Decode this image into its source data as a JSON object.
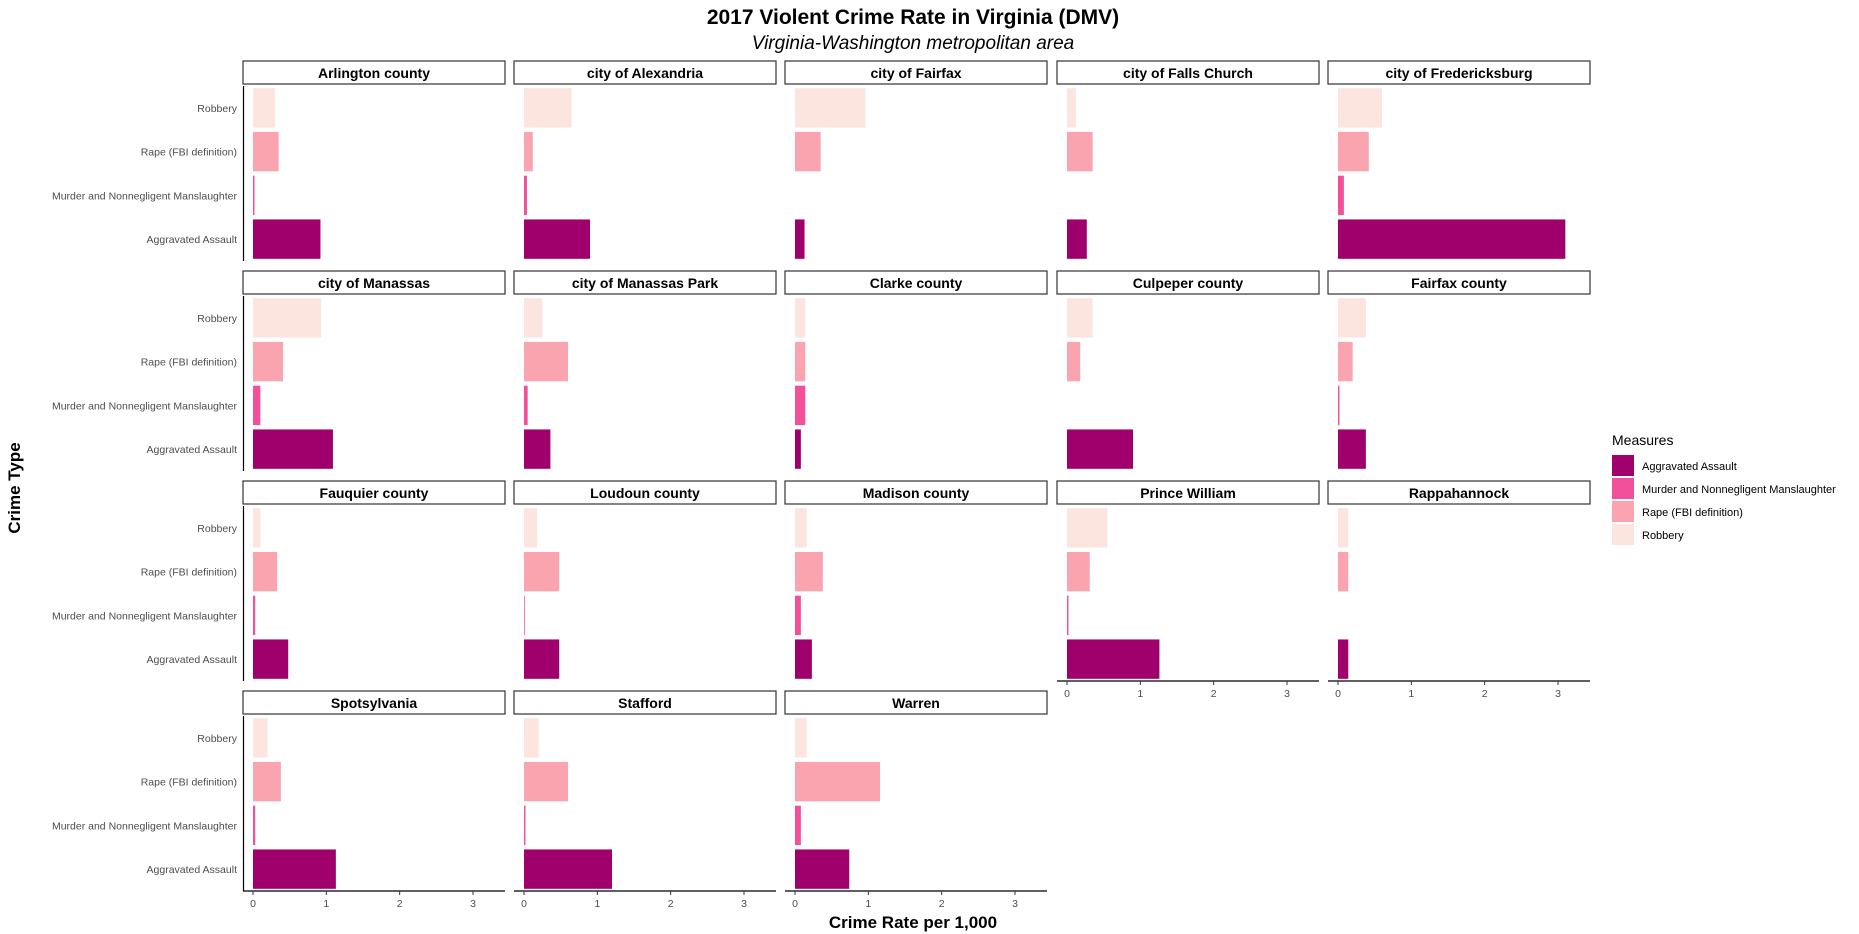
{
  "chart_data": {
    "type": "bar",
    "orientation": "horizontal",
    "title": "2017 Violent Crime Rate in Virginia (DMV)",
    "subtitle": "Virginia-Washington metropolitan area",
    "xlabel": "Crime Rate per 1,000",
    "ylabel": "Crime Type",
    "xlim": [
      0,
      3.3
    ],
    "xticks": [
      "0",
      "1",
      "2",
      "3"
    ],
    "categories": [
      "Robbery",
      "Rape (FBI definition)",
      "Murder and Nonnegligent Manslaughter",
      "Aggravated Assault"
    ],
    "legend": {
      "title": "Measures",
      "position": "right",
      "items": [
        {
          "label": "Aggravated Assault",
          "color": "#a0006c"
        },
        {
          "label": "Murder and Nonnegligent Manslaughter",
          "color": "#f2509a"
        },
        {
          "label": "Rape (FBI definition)",
          "color": "#f9a4ae"
        },
        {
          "label": "Robbery",
          "color": "#fde5df"
        }
      ]
    },
    "grid": false,
    "facets": [
      {
        "name": "Arlington county",
        "values": {
          "Robbery": 0.3,
          "Rape (FBI definition)": 0.35,
          "Murder and Nonnegligent Manslaughter": 0.02,
          "Aggravated Assault": 0.92
        }
      },
      {
        "name": "city of Alexandria",
        "values": {
          "Robbery": 0.65,
          "Rape (FBI definition)": 0.12,
          "Murder and Nonnegligent Manslaughter": 0.04,
          "Aggravated Assault": 0.9
        }
      },
      {
        "name": "city of Fairfax",
        "values": {
          "Robbery": 0.96,
          "Rape (FBI definition)": 0.35,
          "Murder and Nonnegligent Manslaughter": 0.0,
          "Aggravated Assault": 0.13
        }
      },
      {
        "name": "city of Falls Church",
        "values": {
          "Robbery": 0.12,
          "Rape (FBI definition)": 0.35,
          "Murder and Nonnegligent Manslaughter": 0.0,
          "Aggravated Assault": 0.27
        }
      },
      {
        "name": "city of Fredericksburg",
        "values": {
          "Robbery": 0.6,
          "Rape (FBI definition)": 0.42,
          "Murder and Nonnegligent Manslaughter": 0.08,
          "Aggravated Assault": 3.1
        }
      },
      {
        "name": "city of Manassas",
        "values": {
          "Robbery": 0.93,
          "Rape (FBI definition)": 0.41,
          "Murder and Nonnegligent Manslaughter": 0.1,
          "Aggravated Assault": 1.09
        }
      },
      {
        "name": "city of Manassas Park",
        "values": {
          "Robbery": 0.25,
          "Rape (FBI definition)": 0.6,
          "Murder and Nonnegligent Manslaughter": 0.05,
          "Aggravated Assault": 0.36
        }
      },
      {
        "name": "Clarke county",
        "values": {
          "Robbery": 0.14,
          "Rape (FBI definition)": 0.14,
          "Murder and Nonnegligent Manslaughter": 0.14,
          "Aggravated Assault": 0.08
        }
      },
      {
        "name": "Culpeper county",
        "values": {
          "Robbery": 0.35,
          "Rape (FBI definition)": 0.18,
          "Murder and Nonnegligent Manslaughter": 0.0,
          "Aggravated Assault": 0.9
        }
      },
      {
        "name": "Fairfax county",
        "values": {
          "Robbery": 0.38,
          "Rape (FBI definition)": 0.2,
          "Murder and Nonnegligent Manslaughter": 0.02,
          "Aggravated Assault": 0.38
        }
      },
      {
        "name": "Fauquier county",
        "values": {
          "Robbery": 0.1,
          "Rape (FBI definition)": 0.33,
          "Murder and Nonnegligent Manslaughter": 0.03,
          "Aggravated Assault": 0.48
        }
      },
      {
        "name": "Loudoun county",
        "values": {
          "Robbery": 0.18,
          "Rape (FBI definition)": 0.48,
          "Murder and Nonnegligent Manslaughter": 0.01,
          "Aggravated Assault": 0.48
        }
      },
      {
        "name": "Madison county",
        "values": {
          "Robbery": 0.16,
          "Rape (FBI definition)": 0.38,
          "Murder and Nonnegligent Manslaughter": 0.08,
          "Aggravated Assault": 0.23
        }
      },
      {
        "name": "Prince William",
        "values": {
          "Robbery": 0.55,
          "Rape (FBI definition)": 0.31,
          "Murder and Nonnegligent Manslaughter": 0.02,
          "Aggravated Assault": 1.26
        }
      },
      {
        "name": "Rappahannock",
        "values": {
          "Robbery": 0.14,
          "Rape (FBI definition)": 0.14,
          "Murder and Nonnegligent Manslaughter": 0.0,
          "Aggravated Assault": 0.14
        }
      },
      {
        "name": "Spotsylvania",
        "values": {
          "Robbery": 0.2,
          "Rape (FBI definition)": 0.38,
          "Murder and Nonnegligent Manslaughter": 0.03,
          "Aggravated Assault": 1.13
        }
      },
      {
        "name": "Stafford",
        "values": {
          "Robbery": 0.2,
          "Rape (FBI definition)": 0.6,
          "Murder and Nonnegligent Manslaughter": 0.02,
          "Aggravated Assault": 1.2
        }
      },
      {
        "name": "Warren",
        "values": {
          "Robbery": 0.16,
          "Rape (FBI definition)": 1.16,
          "Murder and Nonnegligent Manslaughter": 0.08,
          "Aggravated Assault": 0.74
        }
      }
    ]
  }
}
